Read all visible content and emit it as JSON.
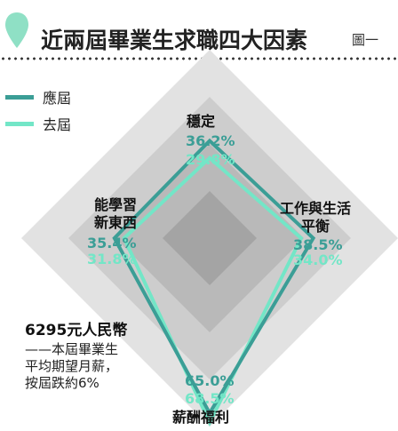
{
  "header": {
    "title": "近兩屆畢業生求職四大因素",
    "figure_label": "圖一"
  },
  "legend": [
    {
      "label": "應屆",
      "color": "#3b9e96"
    },
    {
      "label": "去屆",
      "color": "#73e6c7"
    }
  ],
  "note": {
    "amount": "6295元人民幣",
    "text": "——本屆畢業生\n平均期望月薪，\n按屆跌約6%"
  },
  "chart_data": {
    "type": "radar",
    "categories": [
      "穩定",
      "工作與生活平衡",
      "薪酬福利",
      "能學習新東西"
    ],
    "category_labels": [
      "穩定",
      "工作與生活\n平衡",
      "薪酬福利",
      "能學習\n新東西"
    ],
    "series": [
      {
        "name": "應屆",
        "values": [
          36.2,
          38.5,
          65.0,
          35.4
        ],
        "labels": [
          "36.2%",
          "38.5%",
          "65.0%",
          "35.4%"
        ],
        "color": "#3b9e96"
      },
      {
        "name": "去屆",
        "values": [
          29.8,
          34.0,
          68.5,
          31.8
        ],
        "labels": [
          "29.8%",
          "34.0%",
          "68.5%",
          "31.8%"
        ],
        "color": "#73e6c7"
      }
    ],
    "range": [
      0,
      70
    ],
    "ring_colors": [
      "#e2e2e2",
      "#cdcdcd",
      "#b9b9b9",
      "#a4a4a4"
    ]
  }
}
